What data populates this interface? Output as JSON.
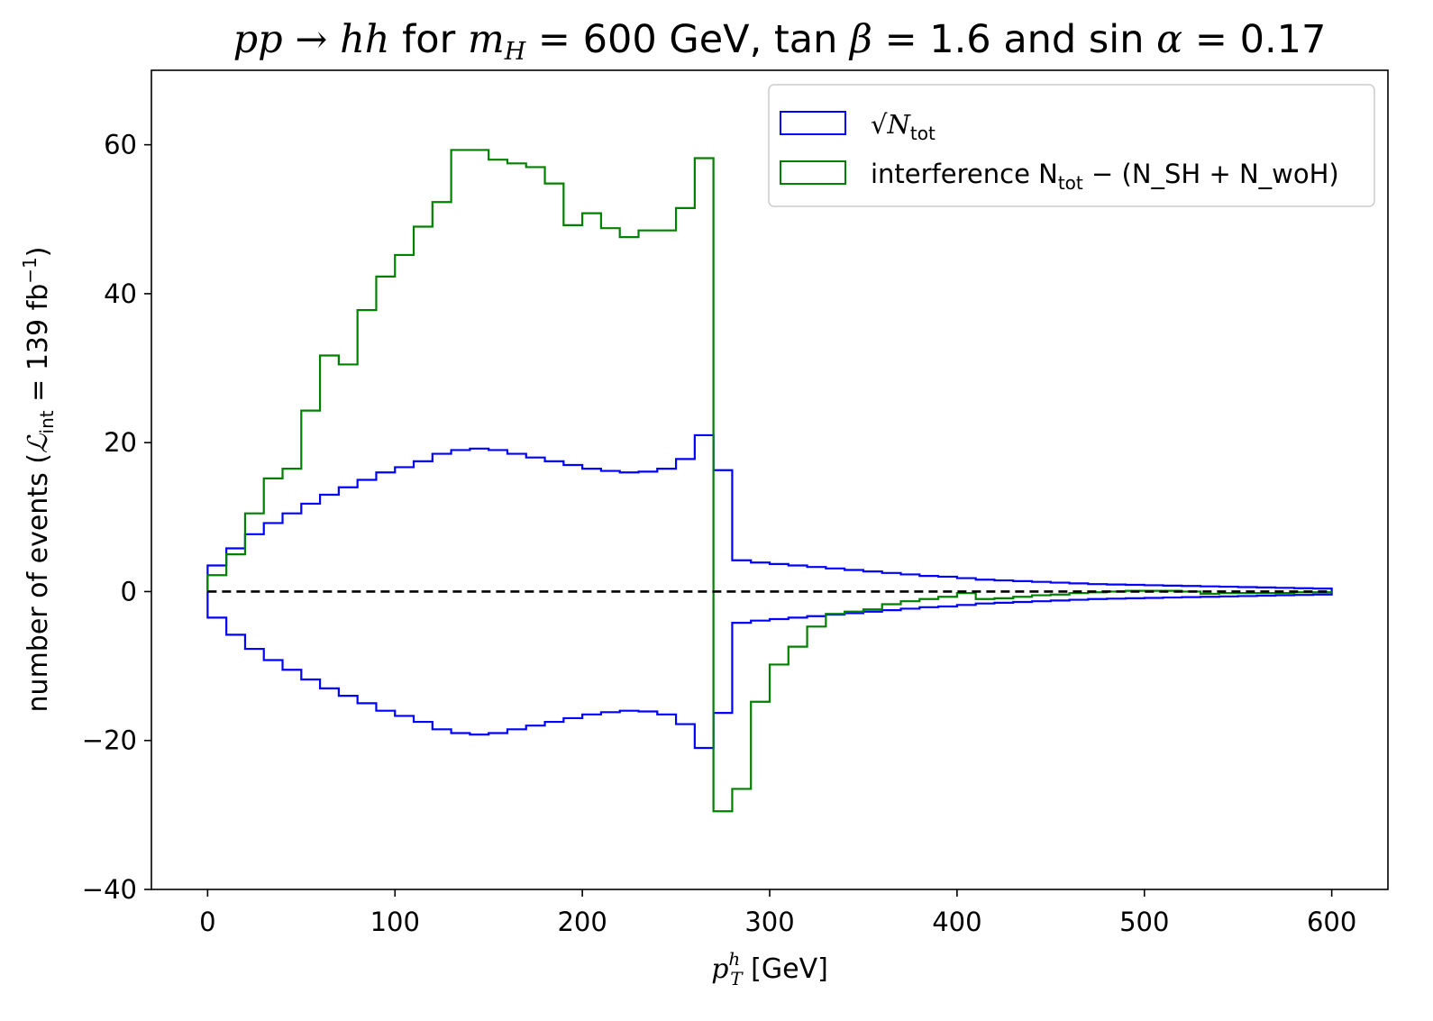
{
  "chart_data": {
    "type": "histogram-step",
    "title_parts": {
      "process": "pp → hh",
      "for": " for ",
      "mass_sym": "m",
      "mass_sub": "H",
      "mass_val": " = 600 GeV, tan ",
      "beta_sym": "β",
      "beta_val": " = 1.6 and sin ",
      "alpha_sym": "α",
      "alpha_val": " = 0.17"
    },
    "xlabel": {
      "sym": "p",
      "sup": "h",
      "sub": "T",
      "unit": " [GeV]"
    },
    "ylabel": {
      "text": "number of events (",
      "lumi": "ℒ",
      "lumi_sub": "int",
      "val": " = 139 fb",
      "exp": "−1",
      "close": ")"
    },
    "xlim": [
      -30,
      630
    ],
    "ylim": [
      -40,
      70
    ],
    "xticks": [
      "0",
      "100",
      "200",
      "300",
      "400",
      "500",
      "600"
    ],
    "yticks": [
      "−40",
      "−20",
      "0",
      "20",
      "40",
      "60"
    ],
    "bin_width": 10,
    "bin_edges_start": 0,
    "legend": {
      "position": "upper right",
      "items": [
        {
          "label_main": "√N",
          "label_sub": "tot",
          "label_rest": "",
          "color": "#0000ff"
        },
        {
          "label_main": "interference N",
          "label_sub": "tot",
          "label_rest": " − (N_SH + N_woH)",
          "color": "#008000"
        }
      ]
    },
    "series": [
      {
        "name": "sqrt(N_tot)",
        "color": "#0000ff",
        "symmetric": true,
        "values": [
          3.5,
          5.8,
          7.7,
          9.2,
          10.5,
          11.8,
          13.0,
          14.0,
          15.0,
          16.0,
          16.7,
          17.5,
          18.5,
          19.0,
          19.2,
          19.0,
          18.5,
          18.0,
          17.5,
          17.0,
          16.5,
          16.2,
          16.0,
          16.1,
          16.5,
          17.8,
          21.0,
          16.3,
          4.2,
          3.9,
          3.7,
          3.5,
          3.3,
          3.1,
          2.9,
          2.7,
          2.5,
          2.3,
          2.1,
          2.0,
          1.8,
          1.6,
          1.5,
          1.4,
          1.3,
          1.2,
          1.1,
          1.0,
          0.95,
          0.9,
          0.85,
          0.8,
          0.75,
          0.7,
          0.65,
          0.6,
          0.55,
          0.5,
          0.45,
          0.4
        ]
      },
      {
        "name": "interference",
        "color": "#008000",
        "symmetric": false,
        "values": [
          2.2,
          5.0,
          10.5,
          15.2,
          16.5,
          24.3,
          31.7,
          30.5,
          37.8,
          42.3,
          45.2,
          49.0,
          52.3,
          59.3,
          59.3,
          58.0,
          57.5,
          57.0,
          54.8,
          49.2,
          50.8,
          48.8,
          47.6,
          48.5,
          48.5,
          51.5,
          58.2,
          -29.5,
          -26.5,
          -14.8,
          -9.8,
          -7.4,
          -4.7,
          -3.0,
          -2.7,
          -2.4,
          -1.7,
          -1.3,
          -1.0,
          -0.7,
          -0.2,
          -1.0,
          -0.9,
          -0.7,
          -0.5,
          -0.4,
          -0.2,
          -0.1,
          0.0,
          0.1,
          0.1,
          0.1,
          0.0,
          -0.3,
          -0.2,
          -0.2,
          -0.2,
          -0.2,
          -0.1,
          -0.1
        ]
      }
    ],
    "reference_line": {
      "y": 0,
      "style": "dashed",
      "color": "#000000"
    }
  }
}
